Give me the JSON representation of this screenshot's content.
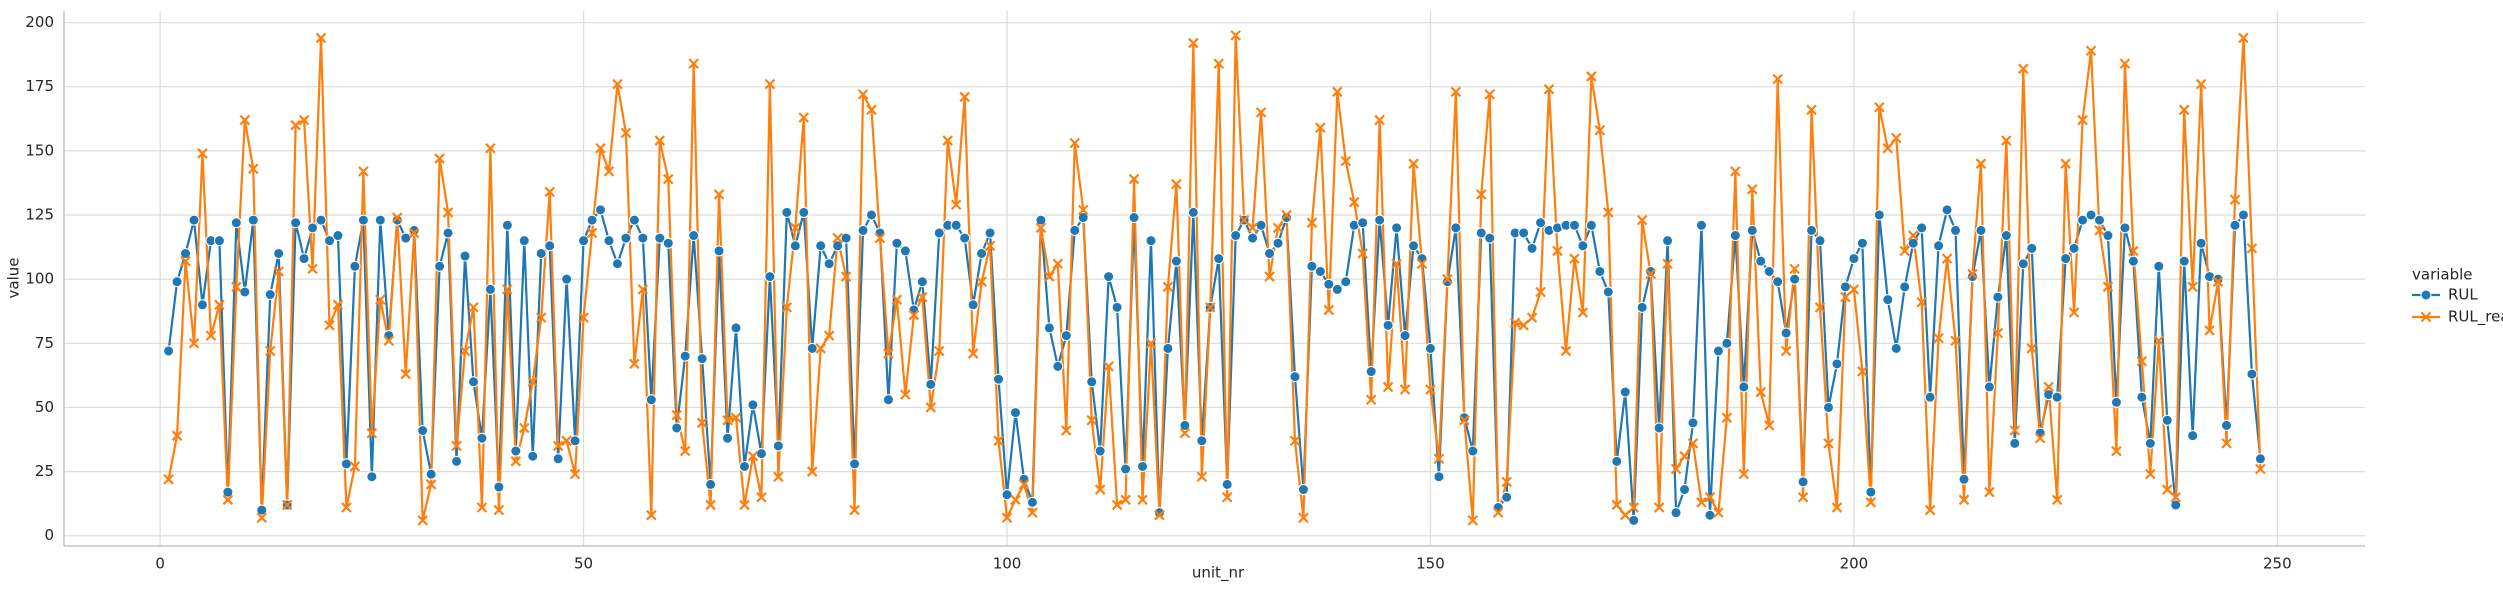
{
  "chart_data": {
    "type": "line",
    "x_label": "unit_nr",
    "y_label": "value",
    "legend_title": "variable",
    "legend": "center right outside",
    "grid": true,
    "xlim": [
      -11.35,
      260.35
    ],
    "ylim": [
      -4,
      204.5
    ],
    "xticks": [
      0,
      50,
      100,
      150,
      200,
      250
    ],
    "yticks": [
      0,
      25,
      50,
      75,
      100,
      125,
      150,
      175,
      200
    ],
    "x": [
      1,
      2,
      3,
      4,
      5,
      6,
      7,
      8,
      9,
      10,
      11,
      12,
      13,
      14,
      15,
      16,
      17,
      18,
      19,
      20,
      21,
      22,
      23,
      24,
      25,
      26,
      27,
      28,
      29,
      30,
      31,
      32,
      33,
      34,
      35,
      36,
      37,
      38,
      39,
      40,
      41,
      42,
      43,
      44,
      45,
      46,
      47,
      48,
      49,
      50,
      51,
      52,
      53,
      54,
      55,
      56,
      57,
      58,
      59,
      60,
      61,
      62,
      63,
      64,
      65,
      66,
      67,
      68,
      69,
      70,
      71,
      72,
      73,
      74,
      75,
      76,
      77,
      78,
      79,
      80,
      81,
      82,
      83,
      84,
      85,
      86,
      87,
      88,
      89,
      90,
      91,
      92,
      93,
      94,
      95,
      96,
      97,
      98,
      99,
      100,
      101,
      102,
      103,
      104,
      105,
      106,
      107,
      108,
      109,
      110,
      111,
      112,
      113,
      114,
      115,
      116,
      117,
      118,
      119,
      120,
      121,
      122,
      123,
      124,
      125,
      126,
      127,
      128,
      129,
      130,
      131,
      132,
      133,
      134,
      135,
      136,
      137,
      138,
      139,
      140,
      141,
      142,
      143,
      144,
      145,
      146,
      147,
      148,
      149,
      150,
      151,
      152,
      153,
      154,
      155,
      156,
      157,
      158,
      159,
      160,
      161,
      162,
      163,
      164,
      165,
      166,
      167,
      168,
      169,
      170,
      171,
      172,
      173,
      174,
      175,
      176,
      177,
      178,
      179,
      180,
      181,
      182,
      183,
      184,
      185,
      186,
      187,
      188,
      189,
      190,
      191,
      192,
      193,
      194,
      195,
      196,
      197,
      198,
      199,
      200,
      201,
      202,
      203,
      204,
      205,
      206,
      207,
      208,
      209,
      210,
      211,
      212,
      213,
      214,
      215,
      216,
      217,
      218,
      219,
      220,
      221,
      222,
      223,
      224,
      225,
      226,
      227,
      228,
      229,
      230,
      231,
      232,
      233,
      234,
      235,
      236,
      237,
      238,
      239,
      240,
      241,
      242,
      243,
      244,
      245,
      246,
      247,
      248
    ],
    "series": [
      {
        "name": "RUL",
        "color": "#1f77b4",
        "marker": "o",
        "values": [
          72,
          99,
          110,
          123,
          90,
          115,
          115,
          17,
          122,
          95,
          123,
          10,
          94,
          110,
          12,
          122,
          108,
          120,
          123,
          115,
          117,
          28,
          105,
          123,
          23,
          123,
          78,
          123,
          116,
          119,
          41,
          24,
          105,
          118,
          29,
          109,
          60,
          38,
          96,
          19,
          121,
          33,
          115,
          31,
          110,
          113,
          30,
          100,
          37,
          115,
          123,
          127,
          115,
          106,
          116,
          123,
          116,
          53,
          116,
          114,
          42,
          70,
          117,
          69,
          20,
          111,
          38,
          81,
          27,
          51,
          32,
          101,
          35,
          126,
          113,
          126,
          73,
          113,
          106,
          113,
          116,
          28,
          119,
          125,
          118,
          53,
          114,
          111,
          88,
          99,
          59,
          118,
          121,
          121,
          116,
          90,
          110,
          118,
          61,
          16,
          48,
          22,
          13,
          123,
          81,
          66,
          78,
          119,
          124,
          60,
          33,
          101,
          89,
          26,
          124,
          27,
          115,
          9,
          73,
          107,
          43,
          126,
          37,
          89,
          108,
          20,
          117,
          123,
          116,
          121,
          110,
          114,
          124,
          62,
          18,
          105,
          103,
          98,
          96,
          99,
          121,
          122,
          64,
          123,
          82,
          120,
          78,
          113,
          108,
          73,
          23,
          99,
          120,
          46,
          33,
          118,
          116,
          11,
          15,
          118,
          118,
          112,
          122,
          119,
          120,
          121,
          121,
          113,
          121,
          103,
          95,
          29,
          56,
          6,
          89,
          103,
          42,
          115,
          9,
          18,
          44,
          121,
          8,
          72,
          75,
          117,
          58,
          119,
          107,
          103,
          99,
          79,
          100,
          21,
          119,
          115,
          50,
          67,
          97,
          108,
          114,
          17,
          125,
          92,
          73,
          97,
          114,
          120,
          54,
          113,
          127,
          119,
          22,
          101,
          119,
          58,
          93,
          117,
          36,
          106,
          112,
          40,
          55,
          54,
          108,
          112,
          123,
          125,
          123,
          117,
          52,
          120,
          107,
          54,
          36,
          105,
          45,
          12,
          107,
          39,
          114,
          101,
          100,
          43,
          121,
          125,
          63,
          30
        ]
      },
      {
        "name": "RUL_real",
        "color": "#ff7f0e",
        "marker": "x",
        "values": [
          22,
          39,
          107,
          75,
          149,
          78,
          90,
          14,
          97,
          162,
          143,
          7,
          72,
          103,
          12,
          160,
          162,
          104,
          194,
          82,
          90,
          11,
          27,
          142,
          40,
          92,
          76,
          124,
          63,
          118,
          6,
          20,
          147,
          126,
          35,
          72,
          89,
          11,
          151,
          10,
          96,
          29,
          42,
          60,
          85,
          134,
          35,
          37,
          24,
          85,
          118,
          151,
          142,
          176,
          157,
          67,
          96,
          8,
          154,
          139,
          47,
          33,
          184,
          44,
          12,
          133,
          45,
          46,
          12,
          31,
          15,
          176,
          23,
          89,
          120,
          163,
          25,
          73,
          78,
          116,
          101,
          10,
          172,
          166,
          116,
          71,
          92,
          55,
          86,
          93,
          50,
          72,
          154,
          129,
          171,
          71,
          99,
          113,
          37,
          7,
          14,
          20,
          9,
          120,
          101,
          106,
          41,
          153,
          127,
          45,
          18,
          66,
          12,
          14,
          139,
          14,
          75,
          8,
          97,
          137,
          40,
          192,
          23,
          89,
          184,
          15,
          195,
          123,
          120,
          165,
          101,
          120,
          125,
          37,
          7,
          122,
          159,
          88,
          173,
          146,
          130,
          110,
          53,
          162,
          58,
          106,
          57,
          145,
          106,
          57,
          30,
          100,
          173,
          45,
          6,
          133,
          172,
          9,
          21,
          83,
          82,
          85,
          95,
          174,
          111,
          72,
          108,
          87,
          179,
          158,
          126,
          12,
          8,
          11,
          123,
          102,
          11,
          106,
          26,
          31,
          36,
          13,
          15,
          9,
          46,
          142,
          24,
          135,
          56,
          43,
          178,
          72,
          104,
          15,
          166,
          89,
          36,
          11,
          93,
          96,
          64,
          13,
          167,
          151,
          155,
          111,
          117,
          91,
          10,
          77,
          108,
          76,
          14,
          102,
          145,
          17,
          79,
          154,
          41,
          182,
          73,
          38,
          58,
          14,
          145,
          87,
          162,
          189,
          119,
          97,
          33,
          184,
          111,
          68,
          24,
          76,
          18,
          15,
          166,
          97,
          176,
          80,
          99,
          36,
          131,
          194,
          112,
          26
        ]
      }
    ]
  }
}
